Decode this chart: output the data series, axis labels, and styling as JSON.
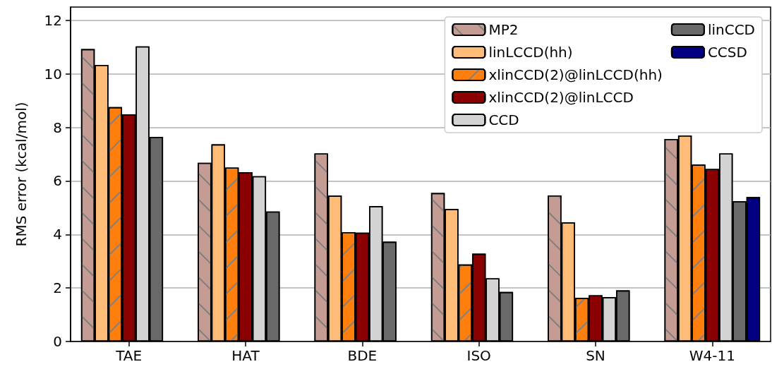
{
  "chart_data": {
    "type": "bar",
    "ylabel": "RMS error (kcal/mol)",
    "categories": [
      "TAE",
      "HAT",
      "BDE",
      "ISO",
      "SN",
      "W4-11"
    ],
    "series": [
      {
        "name": "MP2",
        "color": "#c49c94",
        "values": [
          10.93,
          6.68,
          7.03,
          5.55,
          5.46,
          7.57
        ]
      },
      {
        "name": "linLCCD(hh)",
        "color": "#ffbb78",
        "values": [
          10.34,
          7.37,
          5.45,
          4.95,
          4.45,
          7.7
        ]
      },
      {
        "name": "xlinCCD(2)@linLCCD(hh)",
        "color": "#ff7f0e",
        "values": [
          8.76,
          6.5,
          4.09,
          2.88,
          1.63,
          6.61
        ]
      },
      {
        "name": "xlinCCD(2)@linLCCD",
        "color": "#8b0000",
        "values": [
          8.49,
          6.33,
          4.07,
          3.28,
          1.73,
          6.45
        ]
      },
      {
        "name": "CCD",
        "color": "#d3d3d3",
        "values": [
          11.03,
          6.18,
          5.06,
          2.36,
          1.66,
          7.03
        ]
      },
      {
        "name": "linCCD",
        "color": "#696969",
        "values": [
          7.65,
          4.86,
          3.73,
          1.85,
          1.91,
          5.24
        ]
      },
      {
        "name": "CCSD",
        "color": "#000080",
        "values": [
          null,
          null,
          null,
          null,
          null,
          5.4
        ]
      }
    ],
    "ylim": [
      0,
      12.5
    ],
    "yticks": [
      0,
      2,
      4,
      6,
      8,
      10,
      12
    ],
    "grid": "y",
    "legend": "top right"
  }
}
